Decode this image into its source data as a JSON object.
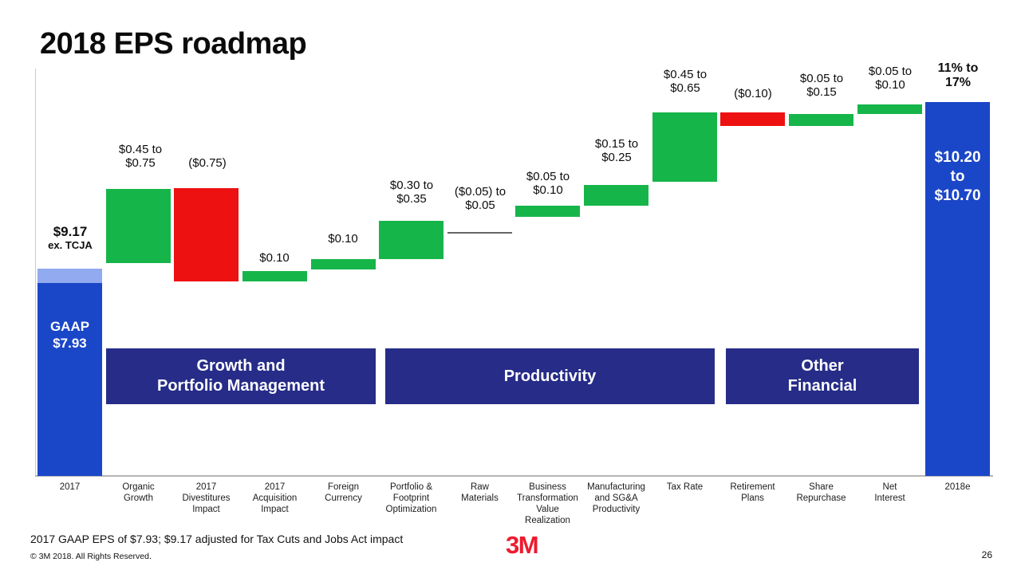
{
  "slide": {
    "title": "2018 EPS roadmap",
    "footnote": "2017 GAAP EPS of $7.93; $9.17 adjusted for Tax Cuts and Jobs Act impact",
    "copyright": "© 3M 2018. All Rights Reserved.",
    "logo_text": "3M",
    "page_number": "26"
  },
  "colors": {
    "increase_green": "#16b54a",
    "decrease_red": "#ee1111",
    "total_blue": "#1a46c8",
    "adjustment_lightblue": "#92aaf0",
    "band_navy": "#262c88",
    "logo_red": "#ed1b2e",
    "neutral_line": "#666666"
  },
  "bands": [
    {
      "label": "Growth and\nPortfolio Management"
    },
    {
      "label": "Productivity"
    },
    {
      "label": "Other\nFinancial"
    }
  ],
  "chart_data": {
    "type": "bar",
    "subtype": "waterfall",
    "title": "2018 EPS roadmap",
    "xlabel": "",
    "ylabel": "",
    "start_value_gaap_2017": 7.93,
    "start_value_ex_tcja_2017": 9.17,
    "end_value_2018e": "$10.20 to $10.70",
    "end_growth_2018e": "11% to 17%",
    "bars": [
      {
        "id": "2017",
        "axis_label": "2017",
        "kind": "total",
        "value_low": 7.93,
        "value_high": 7.93,
        "value_text": "GAAP $7.93 ($9.17 ex. TCJA)",
        "inside_label": "GAAP\n$7.93",
        "side_label": {
          "main": "$9.17",
          "sub": "ex. TCJA"
        }
      },
      {
        "id": "organic-growth",
        "axis_label": "Organic\nGrowth",
        "kind": "increase",
        "value_low": 0.45,
        "value_high": 0.75,
        "value_label": "$0.45 to\n$0.75"
      },
      {
        "id": "divestitures-impact",
        "axis_label": "2017\nDivestitures\nImpact",
        "kind": "decrease",
        "value_low": -0.75,
        "value_high": -0.75,
        "value_label": "($0.75)"
      },
      {
        "id": "acquisition-impact",
        "axis_label": "2017\nAcquisition\nImpact",
        "kind": "increase",
        "value_low": 0.1,
        "value_high": 0.1,
        "value_label": "$0.10"
      },
      {
        "id": "foreign-currency",
        "axis_label": "Foreign\nCurrency",
        "kind": "increase",
        "value_low": 0.1,
        "value_high": 0.1,
        "value_label": "$0.10"
      },
      {
        "id": "portfolio-footprint-optimization",
        "axis_label": "Portfolio &\nFootprint\nOptimization",
        "kind": "increase",
        "value_low": 0.3,
        "value_high": 0.35,
        "value_label": "$0.30 to\n$0.35"
      },
      {
        "id": "raw-materials",
        "axis_label": "Raw\nMaterials",
        "kind": "neutral",
        "value_low": -0.05,
        "value_high": 0.05,
        "value_label": "($0.05) to\n$0.05"
      },
      {
        "id": "business-transformation-value-realization",
        "axis_label": "Business\nTransformation\nValue\nRealization",
        "kind": "increase",
        "value_low": 0.05,
        "value_high": 0.1,
        "value_label": "$0.05 to\n$0.10"
      },
      {
        "id": "manufacturing-sga-productivity",
        "axis_label": "Manufacturing\nand SG&A\nProductivity",
        "kind": "increase",
        "value_low": 0.15,
        "value_high": 0.25,
        "value_label": "$0.15 to\n$0.25"
      },
      {
        "id": "tax-rate",
        "axis_label": "Tax Rate",
        "kind": "increase",
        "value_low": 0.45,
        "value_high": 0.65,
        "value_label": "$0.45 to\n$0.65"
      },
      {
        "id": "retirement-plans",
        "axis_label": "Retirement\nPlans",
        "kind": "decrease",
        "value_low": -0.1,
        "value_high": -0.1,
        "value_label": "($0.10)"
      },
      {
        "id": "share-repurchase",
        "axis_label": "Share\nRepurchase",
        "kind": "increase",
        "value_low": 0.05,
        "value_high": 0.15,
        "value_label": "$0.05 to\n$0.15"
      },
      {
        "id": "net-interest",
        "axis_label": "Net\nInterest",
        "kind": "increase",
        "value_low": 0.05,
        "value_high": 0.1,
        "value_label": "$0.05 to\n$0.10"
      },
      {
        "id": "2018e",
        "axis_label": "2018e",
        "kind": "total",
        "value_low": 10.2,
        "value_high": 10.7,
        "value_label": "11% to\n17%",
        "value_label_bold": true,
        "inside_label": "$10.20\nto\n$10.70"
      }
    ]
  }
}
